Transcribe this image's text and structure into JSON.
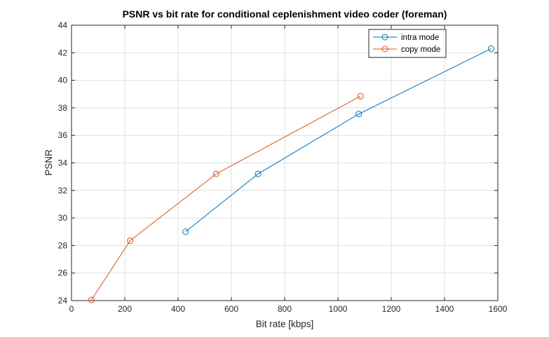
{
  "chart_data": {
    "type": "line",
    "title": "PSNR vs bit rate for conditional ceplenishment video coder (foreman)",
    "xlabel": "Bit rate [kbps]",
    "ylabel": "PSNR",
    "xlim": [
      0,
      1600
    ],
    "ylim": [
      24,
      44
    ],
    "xticks": [
      0,
      200,
      400,
      600,
      800,
      1000,
      1200,
      1400,
      1600
    ],
    "yticks": [
      24,
      26,
      28,
      30,
      32,
      34,
      36,
      38,
      40,
      42,
      44
    ],
    "grid": true,
    "legend_position": "top-right",
    "series": [
      {
        "name": "intra mode",
        "color": "#0072BD",
        "marker": "circle",
        "x": [
          428,
          700,
          1078,
          1575
        ],
        "y": [
          29.0,
          33.2,
          37.55,
          42.3
        ]
      },
      {
        "name": "copy mode",
        "color": "#D95319",
        "marker": "circle",
        "x": [
          75,
          220,
          543,
          1085
        ],
        "y": [
          24.05,
          28.35,
          33.2,
          38.85
        ]
      }
    ]
  }
}
